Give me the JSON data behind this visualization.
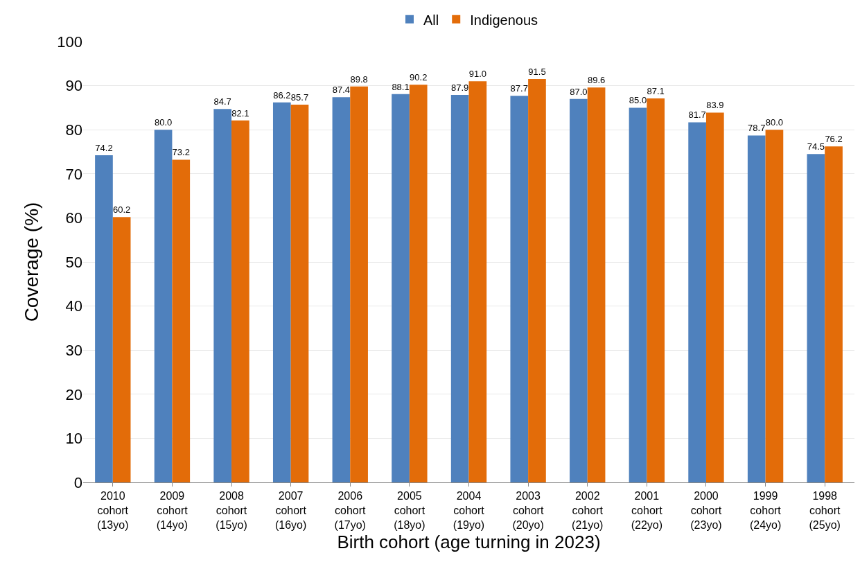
{
  "chart_data": {
    "type": "bar",
    "xlabel": "Birth cohort (age turning in 2023)",
    "ylabel": "Coverage (%)",
    "categories": [
      "2010\ncohort\n(13yo)",
      "2009\ncohort\n(14yo)",
      "2008\ncohort\n(15yo)",
      "2007\ncohort\n(16yo)",
      "2006\ncohort\n(17yo)",
      "2005\ncohort\n(18yo)",
      "2004\ncohort\n(19yo)",
      "2003\ncohort\n(20yo)",
      "2002\ncohort\n(21yo)",
      "2001\ncohort\n(22yo)",
      "2000\ncohort\n(23yo)",
      "1999\ncohort\n(24yo)",
      "1998\ncohort\n(25yo)"
    ],
    "series": [
      {
        "name": "All",
        "color": "#4f81bd",
        "values": [
          74.2,
          80.0,
          84.7,
          86.2,
          87.4,
          88.1,
          87.9,
          87.7,
          87.0,
          85.0,
          81.7,
          78.7,
          74.5
        ],
        "value_labels": [
          "74.2",
          "80.0",
          "84.7",
          "86.2",
          "87.4",
          "88.1",
          "87.9",
          "87.7",
          "87.0",
          "85.0",
          "81.7",
          "78.7",
          "74.5"
        ]
      },
      {
        "name": "Indigenous",
        "color": "#e36c09",
        "values": [
          60.2,
          73.2,
          82.1,
          85.7,
          89.8,
          90.2,
          91.0,
          91.5,
          89.6,
          87.1,
          83.9,
          80.0,
          76.2
        ],
        "value_labels": [
          "60.2",
          "73.2",
          "82.1",
          "85.7",
          "89.8",
          "90.2",
          "91.0",
          "91.5",
          "89.6",
          "87.1",
          "83.9",
          "80.0",
          "76.2"
        ]
      }
    ],
    "ylim": [
      0,
      100
    ],
    "yticks": [
      0,
      10,
      20,
      30,
      40,
      50,
      60,
      70,
      80,
      90,
      100
    ],
    "grid": "y",
    "legend": "top"
  }
}
